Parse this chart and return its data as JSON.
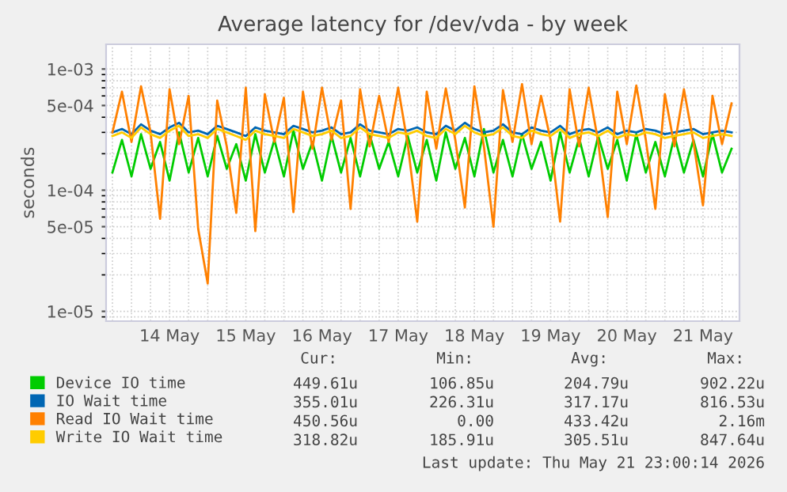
{
  "chart_data": {
    "type": "line",
    "title": "Average latency for /dev/vda - by week",
    "ylabel": "seconds",
    "x": [
      "2026-05-13T18:00",
      "2026-05-13T21:00",
      "2026-05-14T00:00",
      "2026-05-14T03:00",
      "2026-05-14T06:00",
      "2026-05-14T09:00",
      "2026-05-14T12:00",
      "2026-05-14T15:00",
      "2026-05-14T18:00",
      "2026-05-14T21:00",
      "2026-05-15T00:00",
      "2026-05-15T03:00",
      "2026-05-15T06:00",
      "2026-05-15T09:00",
      "2026-05-15T12:00",
      "2026-05-15T15:00",
      "2026-05-15T18:00",
      "2026-05-15T21:00",
      "2026-05-16T00:00",
      "2026-05-16T03:00",
      "2026-05-16T06:00",
      "2026-05-16T09:00",
      "2026-05-16T12:00",
      "2026-05-16T15:00",
      "2026-05-16T18:00",
      "2026-05-16T21:00",
      "2026-05-17T00:00",
      "2026-05-17T03:00",
      "2026-05-17T06:00",
      "2026-05-17T09:00",
      "2026-05-17T12:00",
      "2026-05-17T15:00",
      "2026-05-17T18:00",
      "2026-05-17T21:00",
      "2026-05-18T00:00",
      "2026-05-18T03:00",
      "2026-05-18T06:00",
      "2026-05-18T09:00",
      "2026-05-18T12:00",
      "2026-05-18T15:00",
      "2026-05-18T18:00",
      "2026-05-18T21:00",
      "2026-05-19T00:00",
      "2026-05-19T03:00",
      "2026-05-19T06:00",
      "2026-05-19T09:00",
      "2026-05-19T12:00",
      "2026-05-19T15:00",
      "2026-05-19T18:00",
      "2026-05-19T21:00",
      "2026-05-20T00:00",
      "2026-05-20T03:00",
      "2026-05-20T06:00",
      "2026-05-20T09:00",
      "2026-05-20T12:00",
      "2026-05-20T15:00",
      "2026-05-20T18:00",
      "2026-05-20T21:00",
      "2026-05-21T00:00",
      "2026-05-21T03:00",
      "2026-05-21T06:00",
      "2026-05-21T09:00",
      "2026-05-21T12:00",
      "2026-05-21T15:00",
      "2026-05-21T18:00",
      "2026-05-21T21:00"
    ],
    "series": [
      {
        "name": "Device IO time",
        "color": "#00cc00",
        "values": [
          0.00014,
          0.00026,
          0.00013,
          0.00029,
          0.00015,
          0.00025,
          0.00012,
          0.0003,
          0.00014,
          0.00027,
          0.00013,
          0.00028,
          0.00015,
          0.00024,
          0.00012,
          0.00029,
          0.00014,
          0.00026,
          0.00013,
          0.00031,
          0.00015,
          0.00025,
          0.00012,
          0.00028,
          0.00014,
          0.00027,
          0.00013,
          0.00029,
          0.00015,
          0.00025,
          0.00013,
          0.00028,
          0.00014,
          0.00026,
          0.00012,
          0.0003,
          0.00015,
          0.00027,
          0.00013,
          0.00032,
          0.00014,
          0.00026,
          0.00013,
          0.00029,
          0.00015,
          0.00025,
          0.00012,
          0.0003,
          0.00014,
          0.00027,
          0.00013,
          0.00028,
          0.00015,
          0.00026,
          0.00012,
          0.00029,
          0.00014,
          0.00025,
          0.00013,
          0.00028,
          0.00014,
          0.00026,
          0.00013,
          0.00029,
          0.00014,
          0.00022
        ]
      },
      {
        "name": "IO Wait time",
        "color": "#0066b3",
        "values": [
          0.0003,
          0.00032,
          0.00029,
          0.00035,
          0.00031,
          0.00029,
          0.00033,
          0.00036,
          0.0003,
          0.00031,
          0.00029,
          0.00034,
          0.00032,
          0.0003,
          0.00028,
          0.00033,
          0.00031,
          0.0003,
          0.00029,
          0.00034,
          0.00032,
          0.0003,
          0.00031,
          0.00033,
          0.00029,
          0.0003,
          0.00035,
          0.00031,
          0.0003,
          0.00029,
          0.00032,
          0.00031,
          0.00033,
          0.0003,
          0.00029,
          0.00034,
          0.00031,
          0.00036,
          0.00032,
          0.0003,
          0.00031,
          0.00035,
          0.0003,
          0.00029,
          0.00033,
          0.00031,
          0.0003,
          0.00034,
          0.00029,
          0.00031,
          0.00032,
          0.0003,
          0.00033,
          0.00029,
          0.00031,
          0.0003,
          0.00032,
          0.00031,
          0.00029,
          0.0003,
          0.00031,
          0.00032,
          0.00029,
          0.0003,
          0.00031,
          0.0003
        ]
      },
      {
        "name": "Read IO Wait time",
        "color": "#ff8000",
        "values": [
          0.0003,
          0.00065,
          0.00025,
          0.00072,
          0.0003,
          5.8e-05,
          0.00068,
          0.00024,
          0.0006,
          4.8e-05,
          1.7e-05,
          0.00055,
          0.00023,
          6.5e-05,
          0.0007,
          4.6e-05,
          0.00062,
          0.00025,
          0.00058,
          6.6e-05,
          0.00065,
          0.00022,
          0.0007,
          0.00026,
          0.00055,
          7e-05,
          0.00068,
          0.00023,
          0.0006,
          0.00025,
          0.0007,
          0.00024,
          5.5e-05,
          0.00065,
          0.00022,
          0.00069,
          0.00026,
          7.2e-05,
          0.00072,
          0.00023,
          5e-05,
          0.00067,
          0.00025,
          0.00075,
          0.00024,
          0.0006,
          0.00026,
          5.5e-05,
          0.00068,
          0.00023,
          0.0007,
          0.00025,
          6e-05,
          0.00065,
          0.00024,
          0.00073,
          0.00026,
          7e-05,
          0.00062,
          0.00023,
          0.00068,
          0.00025,
          7.5e-05,
          0.0006,
          0.00024,
          0.00052
        ]
      },
      {
        "name": "Write IO Wait time",
        "color": "#ffcc00",
        "values": [
          0.00028,
          0.0003,
          0.00027,
          0.00033,
          0.00029,
          0.00027,
          0.00031,
          0.00034,
          0.00028,
          0.00029,
          0.00027,
          0.00032,
          0.0003,
          0.00028,
          0.00026,
          0.00031,
          0.00029,
          0.00028,
          0.00027,
          0.00032,
          0.0003,
          0.00028,
          0.00029,
          0.00031,
          0.00027,
          0.00028,
          0.00033,
          0.00029,
          0.00028,
          0.00027,
          0.0003,
          0.00029,
          0.00031,
          0.00028,
          0.00027,
          0.00032,
          0.00029,
          0.00034,
          0.0003,
          0.00028,
          0.00029,
          0.00033,
          0.00028,
          0.00027,
          0.00031,
          0.00029,
          0.00028,
          0.00032,
          0.00027,
          0.00029,
          0.0003,
          0.00028,
          0.00031,
          0.00027,
          0.00029,
          0.00028,
          0.0003,
          0.00029,
          0.00027,
          0.00028,
          0.00029,
          0.0003,
          0.00027,
          0.00028,
          0.00029,
          0.00028
        ]
      }
    ],
    "log": "y",
    "ylim": [
      8.3e-06,
      0.0016
    ],
    "yticks": [
      {
        "value": 1e-05,
        "label": "1e-05"
      },
      {
        "value": 5e-05,
        "label": "5e-05"
      },
      {
        "value": 0.0001,
        "label": "1e-04"
      },
      {
        "value": 0.0005,
        "label": "5e-04"
      },
      {
        "value": 0.001,
        "label": "1e-03"
      }
    ],
    "xlim": [
      "2026-05-13T16:00",
      "2026-05-21T23:30"
    ],
    "xticks": [
      {
        "value": "2026-05-14T12:00",
        "label": "14 May"
      },
      {
        "value": "2026-05-15T12:00",
        "label": "15 May"
      },
      {
        "value": "2026-05-16T12:00",
        "label": "16 May"
      },
      {
        "value": "2026-05-17T12:00",
        "label": "17 May"
      },
      {
        "value": "2026-05-18T12:00",
        "label": "18 May"
      },
      {
        "value": "2026-05-19T12:00",
        "label": "19 May"
      },
      {
        "value": "2026-05-20T12:00",
        "label": "20 May"
      },
      {
        "value": "2026-05-21T12:00",
        "label": "21 May"
      }
    ],
    "grid": true,
    "legend": "bottom left",
    "line_style": "solid",
    "marker": "none",
    "annotations": [
      "Cur:",
      "Min:",
      "Avg:",
      "Max:",
      "449.61u",
      "106.85u",
      "204.79u",
      "902.22u",
      "355.01u",
      "226.31u",
      "317.17u",
      "816.53u",
      "450.56u",
      "0.00",
      "433.42u",
      "2.16m",
      "318.82u",
      "185.91u",
      "305.51u",
      "847.64u",
      "Last update: Thu May 21 23:00:14 2026"
    ]
  }
}
